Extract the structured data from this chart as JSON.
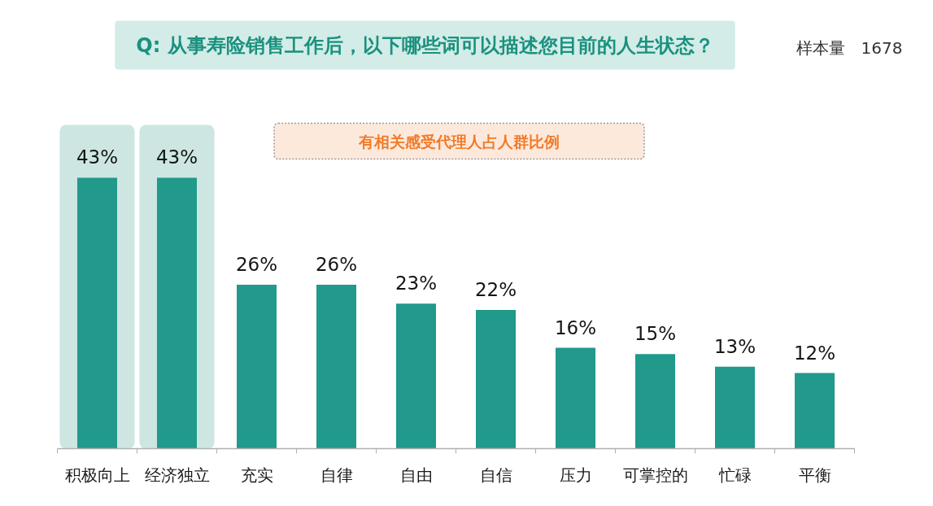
{
  "chart_data": {
    "type": "bar",
    "title": "Q: 从事寿险销售工作后，以下哪些词可以描述您目前的人生状态？",
    "subtitle": "有相关感受代理人占人群比例",
    "annotations": [
      "样本量　1678"
    ],
    "categories": [
      "积极向上",
      "经济独立",
      "充实",
      "自律",
      "自由",
      "自信",
      "压力",
      "可掌控的",
      "忙碌",
      "平衡"
    ],
    "values": [
      43,
      43,
      26,
      26,
      23,
      22,
      16,
      15,
      13,
      12
    ],
    "color": "#21998b",
    "value_labels": [
      "43%",
      "43%",
      "26%",
      "26%",
      "23%",
      "22%",
      "16%",
      "15%",
      "13%",
      "12%"
    ],
    "bands": [
      {
        "axis": "x",
        "from": "积极向上",
        "to": "积极向上",
        "color": "#cde6e2"
      },
      {
        "axis": "x",
        "from": "经济独立",
        "to": "经济独立",
        "color": "#cde6e2"
      }
    ],
    "grid": false
  }
}
